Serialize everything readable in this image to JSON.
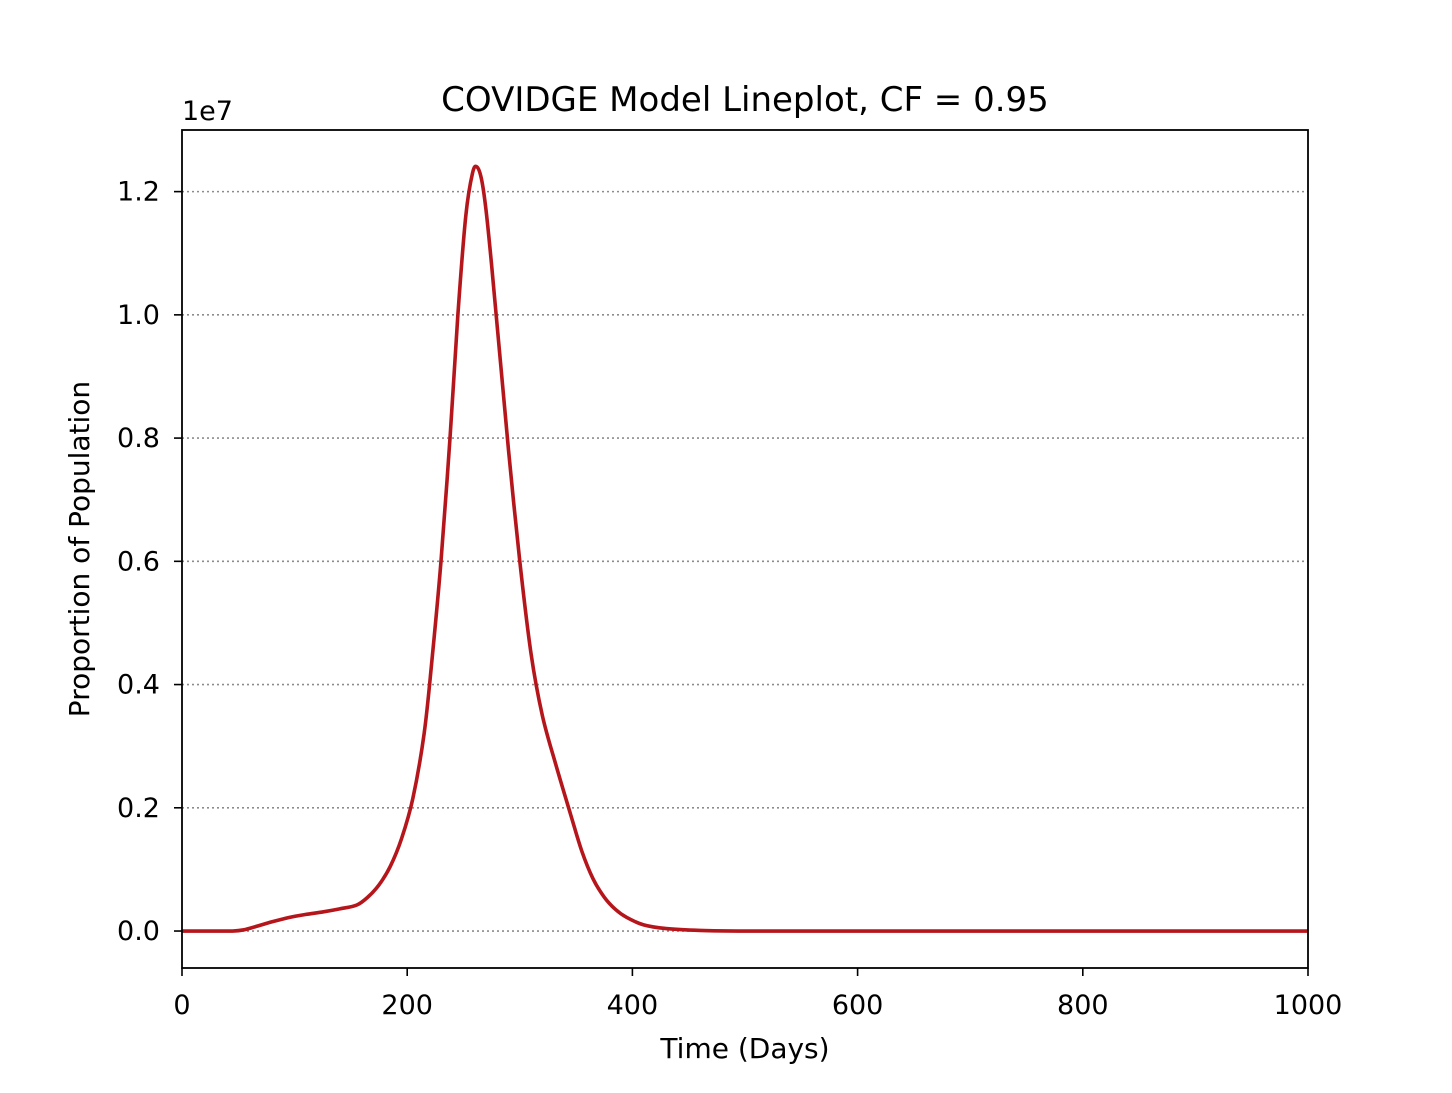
{
  "chart_data": {
    "type": "line",
    "title": "COVIDGE Model Lineplot, CF = 0.95",
    "xlabel": "Time (Days)",
    "ylabel": "Proportion of Population",
    "y_offset_label": "1e7",
    "xlim": [
      0,
      1000
    ],
    "ylim": [
      -0.06,
      1.3
    ],
    "x_ticks": [
      0,
      200,
      400,
      600,
      800,
      1000
    ],
    "x_tick_labels": [
      "0",
      "200",
      "400",
      "600",
      "800",
      "1000"
    ],
    "y_ticks": [
      0.0,
      0.2,
      0.4,
      0.6,
      0.8,
      1.0,
      1.2
    ],
    "y_tick_labels": [
      "0.0",
      "0.2",
      "0.4",
      "0.6",
      "0.8",
      "1.0",
      "1.2"
    ],
    "grid": "horizontal dotted",
    "legend": "none",
    "series": [
      {
        "color": "#b5161b",
        "x": [
          0,
          25,
          45,
          55,
          65,
          80,
          95,
          110,
          125,
          140,
          155,
          165,
          175,
          185,
          195,
          205,
          215,
          222,
          230,
          238,
          245,
          252,
          258,
          262,
          266,
          270,
          275,
          282,
          290,
          300,
          310,
          320,
          332,
          345,
          355,
          365,
          375,
          385,
          395,
          410,
          430,
          460,
          500,
          600,
          800,
          1000
        ],
        "y": [
          0.0,
          0.0,
          0.0,
          0.002,
          0.007,
          0.015,
          0.022,
          0.027,
          0.031,
          0.036,
          0.042,
          0.055,
          0.075,
          0.105,
          0.15,
          0.215,
          0.32,
          0.44,
          0.6,
          0.8,
          1.0,
          1.16,
          1.23,
          1.24,
          1.22,
          1.17,
          1.08,
          0.94,
          0.78,
          0.6,
          0.45,
          0.35,
          0.27,
          0.19,
          0.13,
          0.085,
          0.055,
          0.035,
          0.022,
          0.01,
          0.004,
          0.001,
          0.0,
          0.0,
          0.0,
          0.0
        ]
      }
    ]
  }
}
